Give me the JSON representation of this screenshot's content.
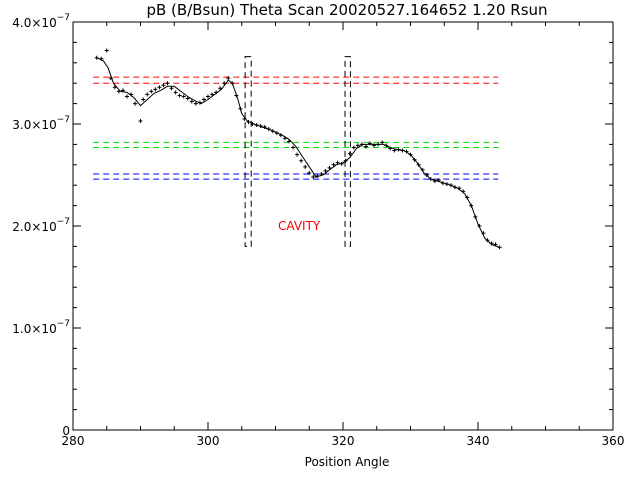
{
  "chart_data": {
    "type": "scatter",
    "title": "pB (B/Bsun) Theta Scan 20020527.164652 1.20 Rsun",
    "xlabel": "Position Angle",
    "ylabel": "",
    "xlim": [
      280,
      360
    ],
    "ylim": [
      0,
      4e-07
    ],
    "x_ticks": [
      {
        "value": 280,
        "label": "280"
      },
      {
        "value": 300,
        "label": "300"
      },
      {
        "value": 320,
        "label": "320"
      },
      {
        "value": 340,
        "label": "340"
      },
      {
        "value": 360,
        "label": "360"
      }
    ],
    "y_ticks": [
      {
        "value": 0,
        "mantissa": "0",
        "exponent": ""
      },
      {
        "value": 1e-07,
        "mantissa": "1.0×10",
        "exponent": "−7"
      },
      {
        "value": 2e-07,
        "mantissa": "2.0×10",
        "exponent": "−7"
      },
      {
        "value": 3e-07,
        "mantissa": "3.0×10",
        "exponent": "−7"
      },
      {
        "value": 4e-07,
        "mantissa": "4.0×10",
        "exponent": "−7"
      }
    ],
    "points": {
      "x": [
        283.5,
        284.2,
        285.0,
        285.6,
        286.2,
        286.8,
        287.4,
        288.0,
        288.6,
        289.2,
        290.0,
        290.4,
        291.0,
        291.6,
        292.2,
        292.8,
        293.4,
        294.0,
        294.6,
        295.2,
        295.8,
        296.4,
        297.0,
        297.6,
        298.2,
        298.8,
        299.4,
        300.0,
        300.6,
        301.2,
        301.8,
        302.4,
        303.0,
        303.6,
        304.2,
        304.8,
        305.4,
        306.0,
        306.6,
        307.2,
        307.8,
        308.4,
        309.0,
        309.6,
        310.2,
        310.8,
        311.4,
        312.0,
        312.6,
        313.2,
        313.8,
        314.4,
        315.0,
        315.6,
        316.2,
        316.8,
        317.4,
        318.0,
        318.6,
        319.2,
        319.8,
        320.4,
        321.0,
        321.6,
        322.2,
        322.8,
        323.4,
        324.0,
        324.6,
        325.2,
        325.8,
        326.4,
        327.0,
        327.6,
        328.2,
        328.8,
        329.4,
        330.0,
        330.6,
        331.2,
        331.8,
        332.4,
        333.0,
        333.6,
        334.2,
        334.8,
        335.4,
        336.0,
        336.6,
        337.2,
        337.8,
        338.4,
        339.0,
        339.6,
        340.2,
        340.8,
        341.4,
        342.0,
        342.6,
        343.2
      ],
      "y": [
        3.65e-07,
        3.64e-07,
        3.72e-07,
        3.45e-07,
        3.36e-07,
        3.32e-07,
        3.33e-07,
        3.27e-07,
        3.29e-07,
        3.2e-07,
        3.03e-07,
        3.24e-07,
        3.29e-07,
        3.32e-07,
        3.34e-07,
        3.36e-07,
        3.38e-07,
        3.4e-07,
        3.35e-07,
        3.31e-07,
        3.28e-07,
        3.27e-07,
        3.25e-07,
        3.22e-07,
        3.2e-07,
        3.21e-07,
        3.24e-07,
        3.27e-07,
        3.29e-07,
        3.31e-07,
        3.35e-07,
        3.4e-07,
        3.45e-07,
        3.4e-07,
        3.28e-07,
        3.15e-07,
        3.05e-07,
        3.02e-07,
        3e-07,
        2.99e-07,
        2.98e-07,
        2.97e-07,
        2.95e-07,
        2.93e-07,
        2.91e-07,
        2.89e-07,
        2.86e-07,
        2.83e-07,
        2.77e-07,
        2.7e-07,
        2.64e-07,
        2.58e-07,
        2.52e-07,
        2.48e-07,
        2.49e-07,
        2.51e-07,
        2.54e-07,
        2.57e-07,
        2.6e-07,
        2.62e-07,
        2.61e-07,
        2.64e-07,
        2.71e-07,
        2.77e-07,
        2.79e-07,
        2.8e-07,
        2.78e-07,
        2.81e-07,
        2.79e-07,
        2.8e-07,
        2.82e-07,
        2.79e-07,
        2.76e-07,
        2.74e-07,
        2.75e-07,
        2.74e-07,
        2.73e-07,
        2.7e-07,
        2.65e-07,
        2.6e-07,
        2.55e-07,
        2.5e-07,
        2.46e-07,
        2.44e-07,
        2.45e-07,
        2.42e-07,
        2.41e-07,
        2.4e-07,
        2.38e-07,
        2.37e-07,
        2.34e-07,
        2.28e-07,
        2.2e-07,
        2.09e-07,
        2e-07,
        1.93e-07,
        1.86e-07,
        1.83e-07,
        1.82e-07,
        1.79e-07
      ]
    },
    "smooth": {
      "x": [
        283.5,
        284.5,
        285.2,
        286.0,
        287.0,
        288.0,
        289.0,
        290.0,
        291.0,
        292.0,
        293.0,
        294.0,
        295.0,
        296.0,
        297.0,
        298.0,
        299.0,
        300.0,
        301.0,
        302.0,
        303.0,
        303.6,
        304.4,
        305.0,
        305.8,
        306.8,
        308.0,
        309.0,
        310.0,
        311.0,
        312.0,
        313.0,
        314.0,
        315.0,
        316.0,
        317.0,
        318.0,
        319.0,
        320.0,
        321.0,
        322.0,
        323.0,
        324.0,
        325.0,
        326.0,
        327.0,
        328.0,
        329.0,
        330.0,
        331.0,
        332.0,
        333.0,
        334.0,
        335.0,
        336.0,
        337.0,
        338.0,
        339.0,
        340.0,
        341.0,
        342.0,
        343.2
      ],
      "y": [
        3.65e-07,
        3.62e-07,
        3.55e-07,
        3.4e-07,
        3.32e-07,
        3.31e-07,
        3.26e-07,
        3.18e-07,
        3.24e-07,
        3.3e-07,
        3.33e-07,
        3.37e-07,
        3.37e-07,
        3.32e-07,
        3.27e-07,
        3.23e-07,
        3.2e-07,
        3.24e-07,
        3.29e-07,
        3.34e-07,
        3.43e-07,
        3.4e-07,
        3.25e-07,
        3.1e-07,
        3.03e-07,
        3e-07,
        2.97e-07,
        2.95e-07,
        2.92e-07,
        2.89e-07,
        2.85e-07,
        2.78e-07,
        2.68e-07,
        2.58e-07,
        2.48e-07,
        2.5e-07,
        2.55e-07,
        2.6e-07,
        2.62e-07,
        2.67e-07,
        2.76e-07,
        2.8e-07,
        2.8e-07,
        2.8e-07,
        2.8e-07,
        2.77e-07,
        2.75e-07,
        2.74e-07,
        2.7e-07,
        2.62e-07,
        2.52e-07,
        2.46e-07,
        2.44e-07,
        2.42e-07,
        2.4e-07,
        2.37e-07,
        2.32e-07,
        2.2e-07,
        2.02e-07,
        1.88e-07,
        1.82e-07,
        1.79e-07
      ]
    },
    "reference_lines": [
      {
        "color": "#ff0000",
        "y": 3.46e-07,
        "x_range": [
          283,
          343
        ]
      },
      {
        "color": "#ff0000",
        "y": 3.4e-07,
        "x_range": [
          283,
          343
        ]
      },
      {
        "color": "#00dd00",
        "y": 2.82e-07,
        "x_range": [
          283,
          343
        ]
      },
      {
        "color": "#00dd00",
        "y": 2.77e-07,
        "x_range": [
          283,
          343
        ]
      },
      {
        "color": "#0000ff",
        "y": 2.51e-07,
        "x_range": [
          283,
          343
        ]
      },
      {
        "color": "#0000ff",
        "y": 2.46e-07,
        "x_range": [
          283,
          343
        ]
      }
    ],
    "boundary_boxes": [
      {
        "x_range": [
          305.5,
          306.4
        ],
        "y_range": [
          1.8e-07,
          3.66e-07
        ]
      },
      {
        "x_range": [
          320.3,
          321.1
        ],
        "y_range": [
          1.8e-07,
          3.66e-07
        ]
      }
    ],
    "annotations": [
      {
        "text": "CAVITY",
        "x": 313.5,
        "y": 2e-07,
        "color": "#ff0000"
      }
    ],
    "grid": false,
    "legend": "none"
  }
}
